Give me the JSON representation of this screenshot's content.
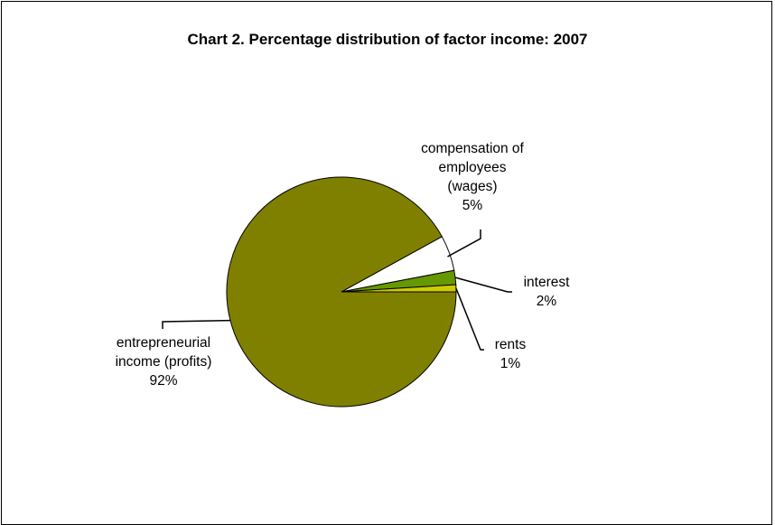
{
  "chart_data": {
    "type": "pie",
    "title": "Chart 2.  Percentage distribution of factor income:  2007",
    "slices": [
      {
        "label_lines": [
          "compensation of",
          "employees",
          "(wages)"
        ],
        "pct_label": "5%",
        "value": 5,
        "color": "#ffffff"
      },
      {
        "label_lines": [
          "interest"
        ],
        "pct_label": "2%",
        "value": 2,
        "color": "#669900"
      },
      {
        "label_lines": [
          "rents"
        ],
        "pct_label": "1%",
        "value": 1,
        "color": "#cccc00"
      },
      {
        "label_lines": [
          "entrepreneurial",
          "income (profits)"
        ],
        "pct_label": "92%",
        "value": 92,
        "color": "#808000"
      }
    ]
  }
}
